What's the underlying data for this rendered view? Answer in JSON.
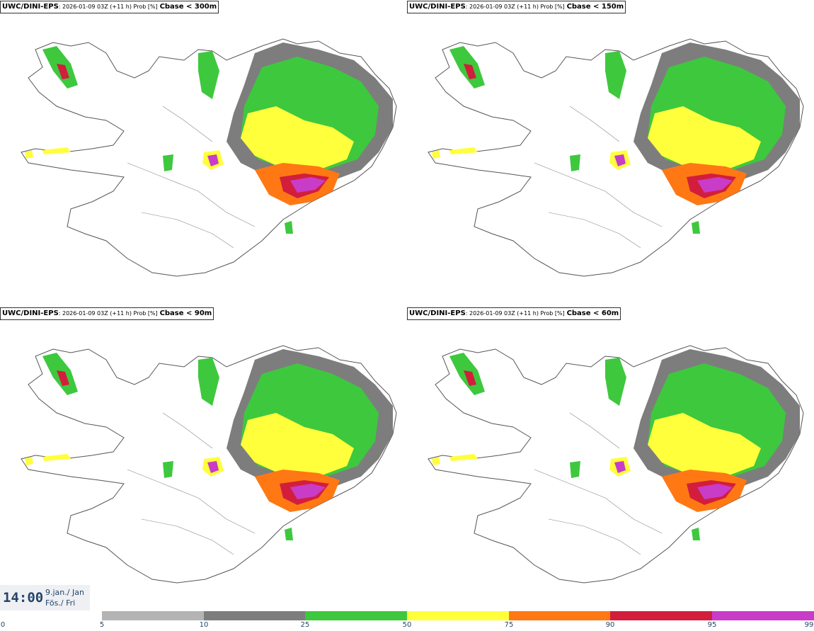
{
  "panels": [
    {
      "model": "UWC/DINI-EPS",
      "run_info": ": 2026-01-09 03Z (+11 h) Prob [%]",
      "variable": "Cbase < 300m"
    },
    {
      "model": "UWC/DINI-EPS",
      "run_info": ": 2026-01-09 03Z (+11 h) Prob [%]",
      "variable": "Cbase < 150m"
    },
    {
      "model": "UWC/DINI-EPS",
      "run_info": ": 2026-01-09 03Z (+11 h) Prob [%]",
      "variable": "Cbase < 90m"
    },
    {
      "model": "UWC/DINI-EPS",
      "run_info": ": 2026-01-09 03Z (+11 h) Prob [%]",
      "variable": "Cbase < 60m"
    }
  ],
  "valid_time": {
    "time": "14:00",
    "date_line1": "9.jan./ Jan",
    "date_line2": "Fös./ Fri"
  },
  "colorbar": {
    "ticks": [
      "0",
      "5",
      "10",
      "25",
      "50",
      "75",
      "90",
      "95",
      "99"
    ],
    "colors": [
      "#ffffff",
      "#b4b4b4",
      "#7d7d7d",
      "#3ec83e",
      "#ffff3c",
      "#ff7814",
      "#d21e3c",
      "#c83cc8",
      "#f0b4f0"
    ]
  }
}
